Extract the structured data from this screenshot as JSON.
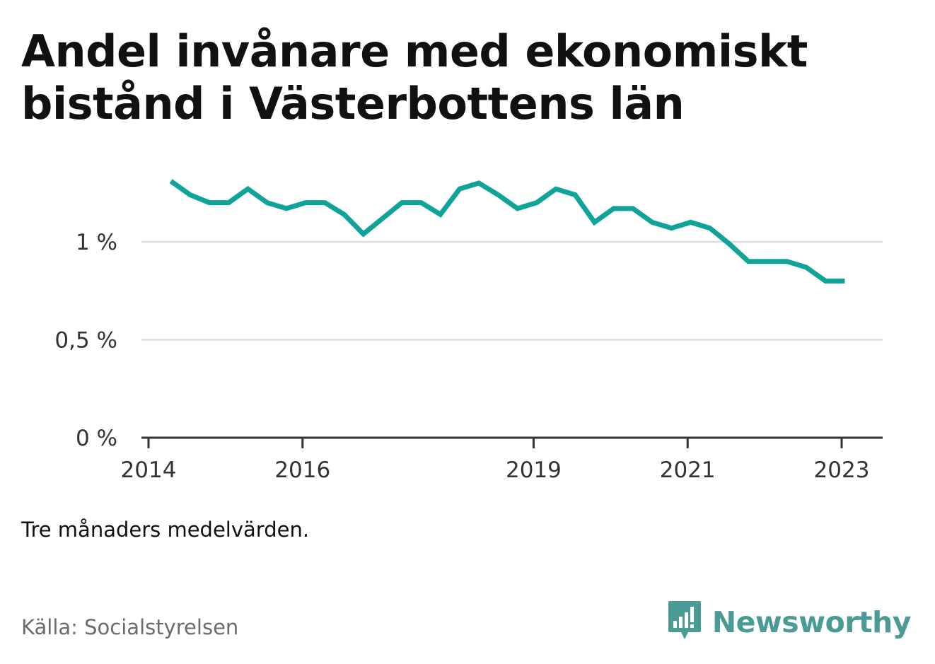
{
  "title": "Andel invånare med ekonomiskt bistånd i Västerbottens län",
  "note": "Tre månaders medelvärden.",
  "source": "Källa: Socialstyrelsen",
  "brand": {
    "name": "Newsworthy",
    "icon": "newsworthy-logo-icon",
    "color": "#4a9a96"
  },
  "colors": {
    "line": "#10a39a",
    "grid": "#dddddd",
    "axis": "#333333"
  },
  "chart_data": {
    "type": "line",
    "title": "Andel invånare med ekonomiskt bistånd i Västerbottens län",
    "xlabel": "",
    "ylabel": "",
    "ylim": [
      0,
      1.35
    ],
    "y_ticks": [
      0,
      0.5,
      1
    ],
    "y_tick_labels": [
      "0 %",
      "0,5 %",
      "1 %"
    ],
    "x_ticks": [
      2014,
      2016,
      2019,
      2021,
      2023
    ],
    "x_tick_labels": [
      "2014",
      "2016",
      "2019",
      "2021",
      "2023"
    ],
    "x_range": [
      2013.9,
      2023.5
    ],
    "grid": true,
    "series": [
      {
        "values": [
          [
            2014.29,
            1.31
          ],
          [
            2014.54,
            1.24
          ],
          [
            2014.79,
            1.2
          ],
          [
            2015.04,
            1.2
          ],
          [
            2015.29,
            1.27
          ],
          [
            2015.54,
            1.2
          ],
          [
            2015.79,
            1.17
          ],
          [
            2016.04,
            1.2
          ],
          [
            2016.29,
            1.2
          ],
          [
            2016.54,
            1.14
          ],
          [
            2016.79,
            1.04
          ],
          [
            2017.04,
            1.12
          ],
          [
            2017.29,
            1.2
          ],
          [
            2017.54,
            1.2
          ],
          [
            2017.79,
            1.14
          ],
          [
            2018.04,
            1.27
          ],
          [
            2018.29,
            1.3
          ],
          [
            2018.54,
            1.24
          ],
          [
            2018.79,
            1.17
          ],
          [
            2019.04,
            1.2
          ],
          [
            2019.29,
            1.27
          ],
          [
            2019.54,
            1.24
          ],
          [
            2019.79,
            1.1
          ],
          [
            2020.04,
            1.17
          ],
          [
            2020.29,
            1.17
          ],
          [
            2020.54,
            1.1
          ],
          [
            2020.79,
            1.07
          ],
          [
            2021.04,
            1.1
          ],
          [
            2021.29,
            1.07
          ],
          [
            2021.54,
            0.99
          ],
          [
            2021.79,
            0.9
          ],
          [
            2022.04,
            0.9
          ],
          [
            2022.29,
            0.9
          ],
          [
            2022.54,
            0.87
          ],
          [
            2022.79,
            0.8
          ],
          [
            2023.04,
            0.8
          ]
        ]
      }
    ]
  }
}
